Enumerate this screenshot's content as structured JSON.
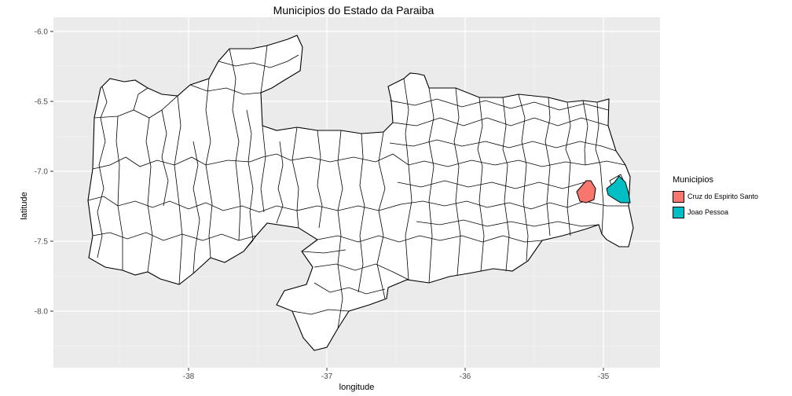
{
  "title": "Municipios do Estado da Paraiba",
  "x_axis": {
    "label": "longitude",
    "ticks": [
      {
        "value": -38,
        "label": "-38"
      },
      {
        "value": -37,
        "label": "-37"
      },
      {
        "value": -36,
        "label": "-36"
      },
      {
        "value": -35,
        "label": "-35"
      }
    ]
  },
  "y_axis": {
    "label": "latitude",
    "ticks": [
      {
        "value": -6.0,
        "label": "-6.0"
      },
      {
        "value": -6.5,
        "label": "-6.5"
      },
      {
        "value": -7.0,
        "label": "-7.0"
      },
      {
        "value": -7.5,
        "label": "-7.5"
      },
      {
        "value": -8.0,
        "label": "-8.0"
      }
    ]
  },
  "legend": {
    "title": "Municipios",
    "placement": "right",
    "items": [
      {
        "label": "Cruz do Espirito Santo",
        "color": "#F8766D"
      },
      {
        "label": "Joao Pessoa",
        "color": "#00BFC4"
      }
    ]
  },
  "colors": {
    "panel_background": "#EBEBEB",
    "grid": "#FFFFFF",
    "municipality_fill": "#FFFFFF",
    "border": "#000000"
  }
}
